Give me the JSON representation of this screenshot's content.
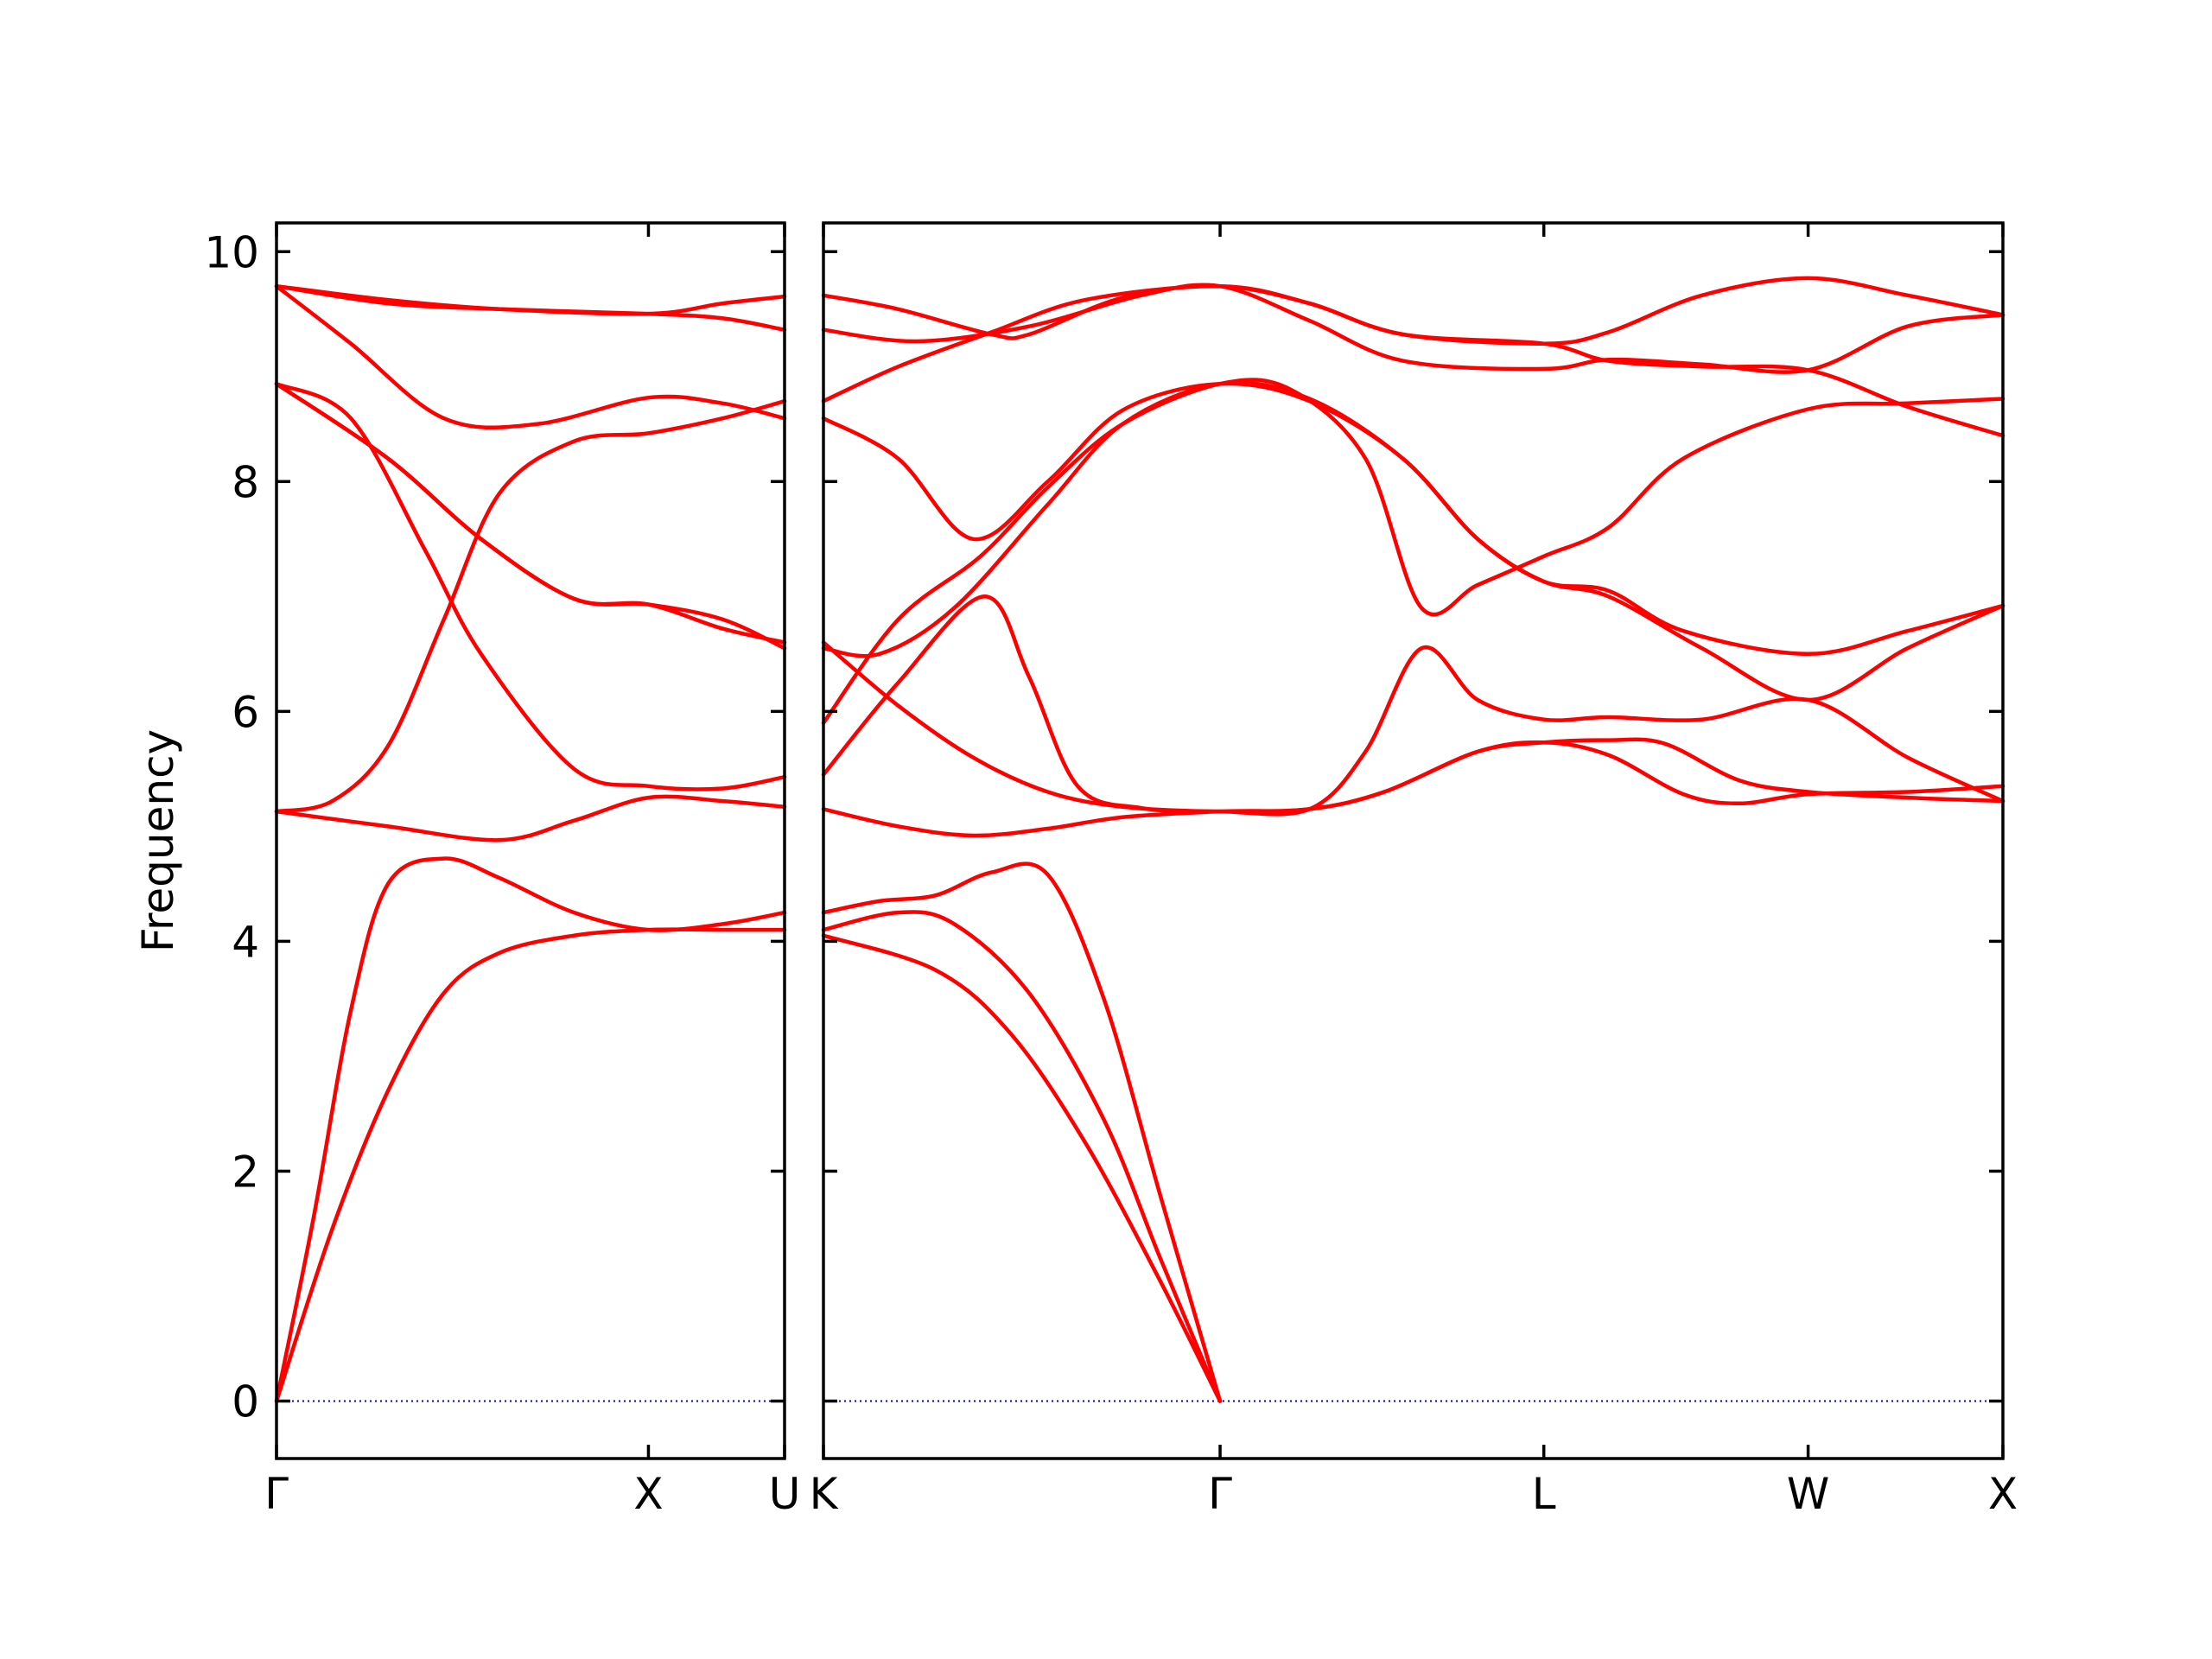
{
  "chart_data": {
    "type": "line",
    "title": "",
    "ylabel": "Frequency",
    "xlabel": "",
    "ylim": [
      -0.5,
      10.25
    ],
    "yticks": [
      0,
      2,
      4,
      6,
      8,
      10
    ],
    "grid": false,
    "legend": "none",
    "colors": {
      "band": "#ff0000",
      "zero_line": "#0000cc",
      "frame": "#000000"
    },
    "panels": [
      {
        "id": "left",
        "x_range": [
          0,
          1.366
        ],
        "ticks": [
          {
            "x": 0,
            "label": "Γ"
          },
          {
            "x": 1.0,
            "label": "X"
          },
          {
            "x": 1.366,
            "label": "U"
          }
        ],
        "bands": [
          [
            [
              0,
              0
            ],
            [
              0.15,
              1.5
            ],
            [
              0.3,
              2.7
            ],
            [
              0.45,
              3.55
            ],
            [
              0.6,
              3.9
            ],
            [
              0.8,
              4.05
            ],
            [
              1.0,
              4.1
            ],
            [
              1.2,
              4.1
            ],
            [
              1.366,
              4.1
            ]
          ],
          [
            [
              0,
              0
            ],
            [
              0.1,
              1.6
            ],
            [
              0.2,
              3.4
            ],
            [
              0.3,
              4.5
            ],
            [
              0.45,
              4.72
            ],
            [
              0.6,
              4.55
            ],
            [
              0.8,
              4.25
            ],
            [
              1.0,
              4.1
            ],
            [
              1.2,
              4.15
            ],
            [
              1.366,
              4.25
            ]
          ],
          [
            [
              0,
              5.13
            ],
            [
              0.3,
              5.0
            ],
            [
              0.6,
              4.88
            ],
            [
              0.8,
              5.05
            ],
            [
              1.0,
              5.25
            ],
            [
              1.2,
              5.22
            ],
            [
              1.366,
              5.17
            ]
          ],
          [
            [
              0,
              5.13
            ],
            [
              0.15,
              5.22
            ],
            [
              0.3,
              5.7
            ],
            [
              0.45,
              6.8
            ],
            [
              0.6,
              7.9
            ],
            [
              0.8,
              8.35
            ],
            [
              1.0,
              8.42
            ],
            [
              1.2,
              8.55
            ],
            [
              1.366,
              8.7
            ]
          ],
          [
            [
              0,
              8.85
            ],
            [
              0.2,
              8.55
            ],
            [
              0.4,
              7.4
            ],
            [
              0.55,
              6.5
            ],
            [
              0.8,
              5.5
            ],
            [
              1.0,
              5.35
            ],
            [
              1.2,
              5.33
            ],
            [
              1.366,
              5.43
            ]
          ],
          [
            [
              0,
              8.85
            ],
            [
              0.3,
              8.2
            ],
            [
              0.55,
              7.5
            ],
            [
              0.8,
              6.98
            ],
            [
              1.0,
              6.93
            ],
            [
              1.2,
              6.8
            ],
            [
              1.366,
              6.55
            ]
          ],
          [
            [
              0,
              8.85
            ],
            [
              0.3,
              8.2
            ],
            [
              0.55,
              7.5
            ],
            [
              0.8,
              6.98
            ],
            [
              1.0,
              6.93
            ],
            [
              1.2,
              6.72
            ],
            [
              1.366,
              6.6
            ]
          ],
          [
            [
              0,
              9.7
            ],
            [
              0.2,
              9.2
            ],
            [
              0.45,
              8.55
            ],
            [
              0.7,
              8.5
            ],
            [
              1.0,
              8.73
            ],
            [
              1.2,
              8.68
            ],
            [
              1.366,
              8.55
            ]
          ],
          [
            [
              0,
              9.7
            ],
            [
              0.3,
              9.55
            ],
            [
              0.6,
              9.5
            ],
            [
              1.0,
              9.46
            ],
            [
              1.2,
              9.42
            ],
            [
              1.366,
              9.32
            ]
          ],
          [
            [
              0,
              9.7
            ],
            [
              0.3,
              9.58
            ],
            [
              0.6,
              9.5
            ],
            [
              1.0,
              9.46
            ],
            [
              1.2,
              9.55
            ],
            [
              1.366,
              9.61
            ]
          ]
        ],
        "zero_line": [
          [
            0,
            0
          ],
          [
            1.366,
            0
          ]
        ]
      },
      {
        "id": "right",
        "x_range": [
          0,
          3.155
        ],
        "ticks": [
          {
            "x": 0,
            "label": "K"
          },
          {
            "x": 1.061,
            "label": "Γ"
          },
          {
            "x": 1.927,
            "label": "L"
          },
          {
            "x": 2.634,
            "label": "W"
          },
          {
            "x": 3.155,
            "label": "X"
          }
        ],
        "bands": [
          [
            [
              0,
              4.05
            ],
            [
              0.3,
              3.75
            ],
            [
              0.5,
              3.2
            ],
            [
              0.7,
              2.25
            ],
            [
              0.9,
              1.05
            ],
            [
              1.061,
              0
            ]
          ],
          [
            [
              0,
              4.1
            ],
            [
              0.2,
              4.25
            ],
            [
              0.35,
              4.15
            ],
            [
              0.55,
              3.55
            ],
            [
              0.75,
              2.45
            ],
            [
              0.9,
              1.25
            ],
            [
              1.061,
              0
            ]
          ],
          [
            [
              0,
              4.25
            ],
            [
              0.15,
              4.35
            ],
            [
              0.3,
              4.4
            ],
            [
              0.45,
              4.6
            ],
            [
              0.6,
              4.58
            ],
            [
              0.75,
              3.5
            ],
            [
              0.9,
              1.8
            ],
            [
              1.061,
              0
            ]
          ],
          [
            [
              0,
              5.15
            ],
            [
              0.2,
              5.0
            ],
            [
              0.4,
              4.92
            ],
            [
              0.6,
              4.98
            ],
            [
              0.8,
              5.08
            ],
            [
              1.061,
              5.13
            ],
            [
              1.3,
              5.15
            ],
            [
              1.5,
              5.3
            ],
            [
              1.75,
              5.65
            ],
            [
              1.927,
              5.73
            ],
            [
              2.1,
              5.62
            ],
            [
              2.3,
              5.28
            ],
            [
              2.45,
              5.2
            ],
            [
              2.634,
              5.28
            ],
            [
              2.9,
              5.3
            ],
            [
              3.155,
              5.35
            ]
          ],
          [
            [
              0,
              6.6
            ],
            [
              0.2,
              6.05
            ],
            [
              0.4,
              5.6
            ],
            [
              0.6,
              5.3
            ],
            [
              0.8,
              5.17
            ],
            [
              1.061,
              5.13
            ],
            [
              1.3,
              5.15
            ],
            [
              1.5,
              5.3
            ],
            [
              1.75,
              5.65
            ],
            [
              1.927,
              5.73
            ],
            [
              2.1,
              5.75
            ],
            [
              2.25,
              5.72
            ],
            [
              2.45,
              5.4
            ],
            [
              2.634,
              5.3
            ],
            [
              2.9,
              5.25
            ],
            [
              3.155,
              5.22
            ]
          ],
          [
            [
              0,
              5.45
            ],
            [
              0.2,
              6.25
            ],
            [
              0.43,
              7.0
            ],
            [
              0.55,
              6.3
            ],
            [
              0.68,
              5.35
            ],
            [
              0.85,
              5.16
            ],
            [
              1.061,
              5.13
            ],
            [
              1.3,
              5.15
            ],
            [
              1.45,
              5.65
            ],
            [
              1.6,
              6.55
            ],
            [
              1.75,
              6.1
            ],
            [
              1.927,
              5.93
            ],
            [
              2.1,
              5.95
            ],
            [
              2.35,
              5.93
            ],
            [
              2.634,
              6.1
            ],
            [
              2.9,
              5.6
            ],
            [
              3.155,
              5.22
            ]
          ],
          [
            [
              0,
              5.9
            ],
            [
              0.2,
              6.8
            ],
            [
              0.42,
              7.35
            ],
            [
              0.6,
              7.95
            ],
            [
              0.8,
              8.5
            ],
            [
              1.061,
              8.85
            ],
            [
              1.25,
              8.8
            ],
            [
              1.45,
              8.2
            ],
            [
              1.6,
              6.9
            ],
            [
              1.75,
              7.1
            ],
            [
              1.927,
              7.35
            ],
            [
              2.1,
              7.6
            ],
            [
              2.3,
              8.2
            ],
            [
              2.634,
              8.63
            ],
            [
              2.9,
              8.68
            ],
            [
              3.155,
              8.72
            ]
          ],
          [
            [
              0,
              6.55
            ],
            [
              0.15,
              6.5
            ],
            [
              0.35,
              6.9
            ],
            [
              0.6,
              7.8
            ],
            [
              0.8,
              8.5
            ],
            [
              1.061,
              8.85
            ],
            [
              1.3,
              8.72
            ],
            [
              1.55,
              8.2
            ],
            [
              1.75,
              7.5
            ],
            [
              1.927,
              7.13
            ],
            [
              2.1,
              7.0
            ],
            [
              2.35,
              6.55
            ],
            [
              2.634,
              6.1
            ],
            [
              2.9,
              6.55
            ],
            [
              3.155,
              6.92
            ]
          ],
          [
            [
              0,
              8.55
            ],
            [
              0.2,
              8.2
            ],
            [
              0.4,
              7.5
            ],
            [
              0.6,
              8.0
            ],
            [
              0.8,
              8.62
            ],
            [
              1.061,
              8.85
            ],
            [
              1.3,
              8.7
            ],
            [
              1.55,
              8.2
            ],
            [
              1.75,
              7.5
            ],
            [
              1.927,
              7.13
            ],
            [
              2.1,
              7.05
            ],
            [
              2.3,
              6.7
            ],
            [
              2.634,
              6.5
            ],
            [
              2.9,
              6.7
            ],
            [
              3.155,
              6.92
            ]
          ],
          [
            [
              0,
              8.7
            ],
            [
              0.2,
              9.0
            ],
            [
              0.45,
              9.3
            ],
            [
              0.7,
              9.58
            ],
            [
              1.061,
              9.7
            ],
            [
              1.3,
              9.55
            ],
            [
              1.55,
              9.28
            ],
            [
              1.927,
              9.2
            ],
            [
              2.1,
              9.05
            ],
            [
              2.35,
              9.0
            ],
            [
              2.634,
              8.97
            ],
            [
              2.9,
              8.65
            ],
            [
              3.155,
              8.4
            ]
          ],
          [
            [
              0,
              9.32
            ],
            [
              0.25,
              9.22
            ],
            [
              0.55,
              9.35
            ],
            [
              0.85,
              9.62
            ],
            [
              1.061,
              9.7
            ],
            [
              1.3,
              9.4
            ],
            [
              1.55,
              9.05
            ],
            [
              1.927,
              8.98
            ],
            [
              2.1,
              9.06
            ],
            [
              2.35,
              9.02
            ],
            [
              2.634,
              8.97
            ],
            [
              2.9,
              9.35
            ],
            [
              3.155,
              9.45
            ]
          ],
          [
            [
              0,
              9.62
            ],
            [
              0.2,
              9.5
            ],
            [
              0.45,
              9.28
            ],
            [
              0.55,
              9.28
            ],
            [
              0.8,
              9.6
            ],
            [
              1.061,
              9.7
            ],
            [
              1.3,
              9.55
            ],
            [
              1.55,
              9.28
            ],
            [
              1.927,
              9.2
            ],
            [
              2.1,
              9.3
            ],
            [
              2.35,
              9.62
            ],
            [
              2.634,
              9.77
            ],
            [
              2.9,
              9.62
            ],
            [
              3.155,
              9.45
            ]
          ]
        ],
        "zero_line": [
          [
            0,
            0
          ],
          [
            3.155,
            0
          ]
        ]
      }
    ]
  }
}
